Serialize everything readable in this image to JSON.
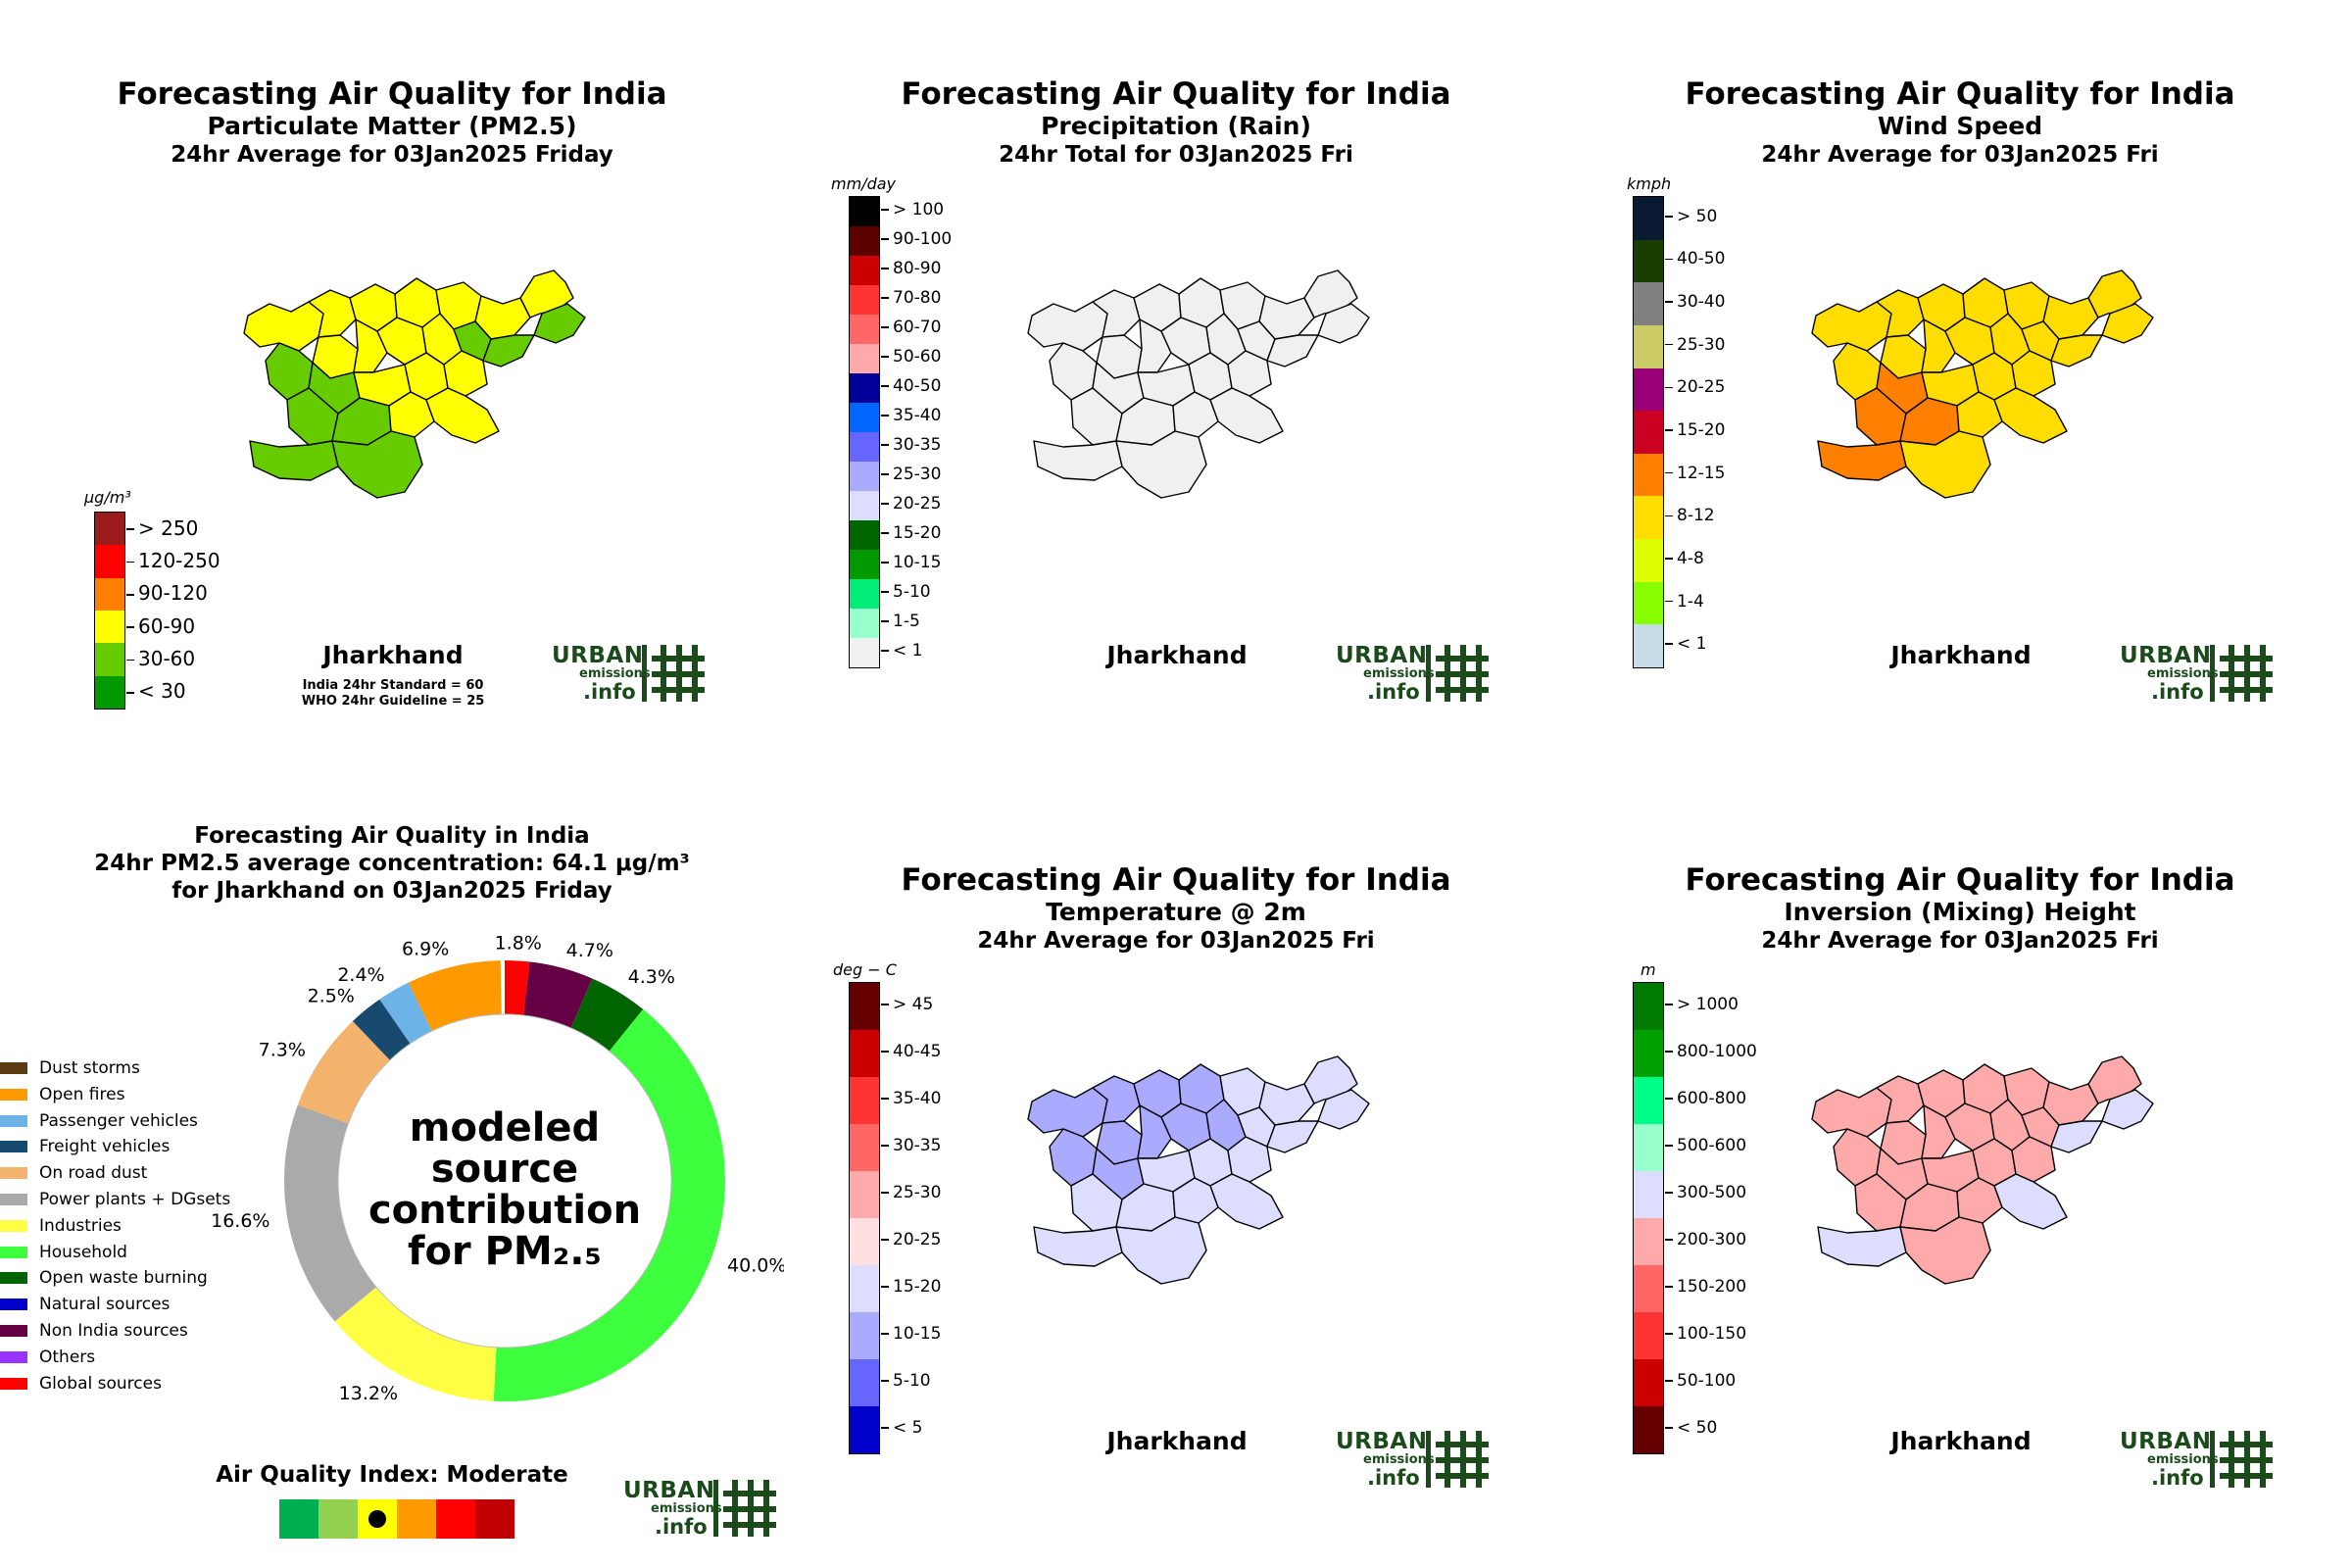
{
  "colors": {
    "logo": "#1b4a1b",
    "map_outline": "#000000"
  },
  "panels": {
    "pm25": {
      "title": "Forecasting Air Quality for India",
      "subtitle": "Particulate Matter (PM2.5)",
      "period": "24hr Average for 03Jan2025 Friday",
      "unit": "μg/m³",
      "state": "Jharkhand",
      "note1": "India 24hr Standard = 60",
      "note2": "WHO 24hr Guideline = 25",
      "scale": [
        {
          "label": "> 250",
          "color": "#9b1c1c"
        },
        {
          "label": "120-250",
          "color": "#ff0000"
        },
        {
          "label": "90-120",
          "color": "#ff7f00"
        },
        {
          "label": "60-90",
          "color": "#ffff00"
        },
        {
          "label": "30-60",
          "color": "#66cc00"
        },
        {
          "label": "< 30",
          "color": "#009900"
        }
      ]
    },
    "rain": {
      "title": "Forecasting Air Quality for India",
      "subtitle": "Precipitation (Rain)",
      "period": "24hr Total for 03Jan2025 Fri",
      "unit": "mm/day",
      "state": "Jharkhand",
      "scale": [
        {
          "label": "> 100",
          "color": "#000000"
        },
        {
          "label": "90-100",
          "color": "#5c0000"
        },
        {
          "label": "80-90",
          "color": "#cc0000"
        },
        {
          "label": "70-80",
          "color": "#ff3333"
        },
        {
          "label": "60-70",
          "color": "#ff6666"
        },
        {
          "label": "50-60",
          "color": "#ffaaaa"
        },
        {
          "label": "40-50",
          "color": "#000099"
        },
        {
          "label": "35-40",
          "color": "#0066ff"
        },
        {
          "label": "30-35",
          "color": "#6666ff"
        },
        {
          "label": "25-30",
          "color": "#aaaaff"
        },
        {
          "label": "20-25",
          "color": "#ddddff"
        },
        {
          "label": "15-20",
          "color": "#006600"
        },
        {
          "label": "10-15",
          "color": "#009900"
        },
        {
          "label": "5-10",
          "color": "#00ee77"
        },
        {
          "label": "1-5",
          "color": "#99ffcc"
        },
        {
          "label": "< 1",
          "color": "#f0f0f0"
        }
      ]
    },
    "wind": {
      "title": "Forecasting Air Quality for India",
      "subtitle": "Wind Speed",
      "period": "24hr Average for 03Jan2025 Fri",
      "unit": "kmph",
      "state": "Jharkhand",
      "scale": [
        {
          "label": "> 50",
          "color": "#0a1a33"
        },
        {
          "label": "40-50",
          "color": "#1a3d00"
        },
        {
          "label": "30-40",
          "color": "#808080"
        },
        {
          "label": "25-30",
          "color": "#cccc66"
        },
        {
          "label": "20-25",
          "color": "#990077"
        },
        {
          "label": "15-20",
          "color": "#cc0022"
        },
        {
          "label": "12-15",
          "color": "#ff7f00"
        },
        {
          "label": "8-12",
          "color": "#ffdd00"
        },
        {
          "label": "4-8",
          "color": "#ddff00"
        },
        {
          "label": "1-4",
          "color": "#88ff00"
        },
        {
          "label": "< 1",
          "color": "#c7dce8"
        }
      ]
    },
    "source": {
      "title_line1": "Forecasting Air Quality in India",
      "title_line2": "24hr PM2.5 average concentration: 64.1 μg/m³",
      "title_line3": "for Jharkhand on 03Jan2025 Friday",
      "center": [
        "modeled",
        "source",
        "contribution",
        "for PM₂.₅"
      ],
      "aqi_title": "Air Quality Index: Moderate",
      "aqi_colors": [
        "#00b050",
        "#92d050",
        "#ffff00",
        "#ff9900",
        "#ff0000",
        "#c00000"
      ],
      "aqi_marker_index": 2
    },
    "temp": {
      "title": "Forecasting Air Quality for India",
      "subtitle": "Temperature @ 2m",
      "period": "24hr Average for 03Jan2025 Fri",
      "unit": "deg − C",
      "state": "Jharkhand",
      "scale": [
        {
          "label": "> 45",
          "color": "#660000"
        },
        {
          "label": "40-45",
          "color": "#cc0000"
        },
        {
          "label": "35-40",
          "color": "#ff3333"
        },
        {
          "label": "30-35",
          "color": "#ff6666"
        },
        {
          "label": "25-30",
          "color": "#ffaaaa"
        },
        {
          "label": "20-25",
          "color": "#ffe0e0"
        },
        {
          "label": "15-20",
          "color": "#ddddff"
        },
        {
          "label": "10-15",
          "color": "#aaaaff"
        },
        {
          "label": "5-10",
          "color": "#6666ff"
        },
        {
          "label": "< 5",
          "color": "#0000cc"
        }
      ]
    },
    "mixing": {
      "title": "Forecasting Air Quality for India",
      "subtitle": "Inversion (Mixing) Height",
      "period": "24hr Average for 03Jan2025 Fri",
      "unit": "m",
      "state": "Jharkhand",
      "scale": [
        {
          "label": "> 1000",
          "color": "#007a00"
        },
        {
          "label": "800-1000",
          "color": "#00a000"
        },
        {
          "label": "600-800",
          "color": "#00ff88"
        },
        {
          "label": "500-600",
          "color": "#99ffcc"
        },
        {
          "label": "300-500",
          "color": "#ddddff"
        },
        {
          "label": "200-300",
          "color": "#ffaaaa"
        },
        {
          "label": "150-200",
          "color": "#ff6666"
        },
        {
          "label": "100-150",
          "color": "#ff3333"
        },
        {
          "label": "50-100",
          "color": "#cc0000"
        },
        {
          "label": "< 50",
          "color": "#660000"
        }
      ]
    }
  },
  "logo": {
    "line1": "URBAN",
    "line2": "emissions",
    "line3": ".info"
  },
  "chart_data": {
    "type": "pie",
    "title": "Forecasting Air Quality in India",
    "categories": [
      "Dust storms",
      "Open fires",
      "Passenger vehicles",
      "Freight vehicles",
      "On road dust",
      "Power plants + DGsets",
      "Industries",
      "Household",
      "Open waste burning",
      "Natural sources",
      "Non India sources",
      "Others",
      "Global sources"
    ],
    "colors": [
      "#5c3a12",
      "#ff9900",
      "#6cb4e8",
      "#174a6e",
      "#f4b36c",
      "#aaaaaa",
      "#ffff44",
      "#3dff3d",
      "#006400",
      "#0000cc",
      "#660044",
      "#9933ff",
      "#ff0000"
    ],
    "values": [
      0,
      6.9,
      2.4,
      2.5,
      7.3,
      16.6,
      13.2,
      40.0,
      4.3,
      0,
      4.7,
      0,
      1.8
    ],
    "labels": [
      "",
      "6.9%",
      "2.4%",
      "2.5%",
      "7.3%",
      "16.6%",
      "13.2%",
      "40.0%",
      "4.3%",
      "",
      "4.7%",
      "",
      "1.8%"
    ],
    "start": "top",
    "direction": "clockwise, order reversed (Global sources first)"
  }
}
